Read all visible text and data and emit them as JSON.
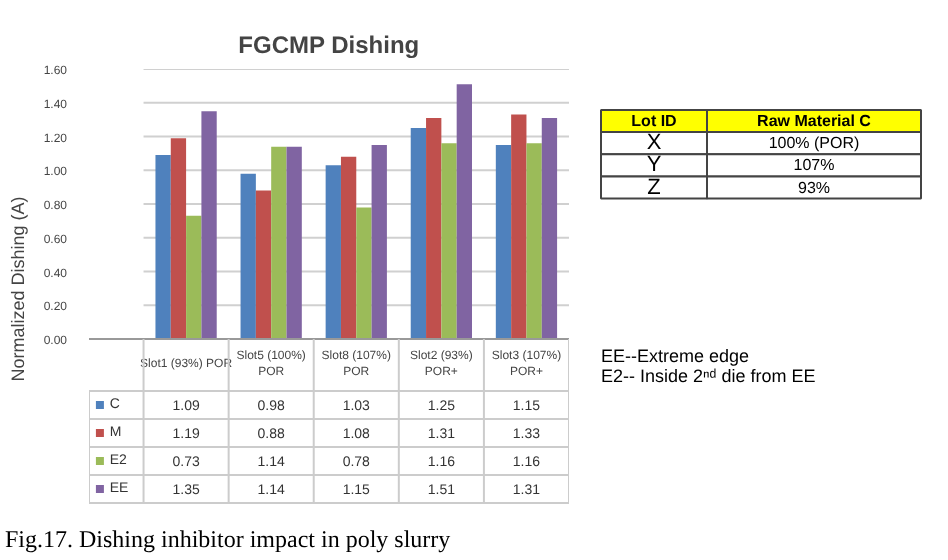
{
  "chart_data": {
    "type": "bar",
    "title": "FGCMP Dishing",
    "ylabel": "Normalized Dishing (A)",
    "categories": [
      "Slot1 (93%) POR",
      "Slot5 (100%)\nPOR",
      "Slot8 (107%)\nPOR",
      "Slot2 (93%)\nPOR+",
      "Slot3 (107%)\nPOR+"
    ],
    "series": [
      {
        "name": "C",
        "color": "#4f81bd",
        "values": [
          1.09,
          0.98,
          1.03,
          1.25,
          1.15
        ]
      },
      {
        "name": "M",
        "color": "#c0504d",
        "values": [
          1.19,
          0.88,
          1.08,
          1.31,
          1.33
        ]
      },
      {
        "name": "E2",
        "color": "#9bbb59",
        "values": [
          0.73,
          1.14,
          0.78,
          1.16,
          1.16
        ]
      },
      {
        "name": "EE",
        "color": "#8064a2",
        "values": [
          1.35,
          1.14,
          1.15,
          1.51,
          1.31
        ]
      }
    ],
    "ylim": [
      0,
      1.6
    ],
    "yticks": [
      {
        "value": 0,
        "label": "0.00"
      },
      {
        "value": 0.2,
        "label": "0.20"
      },
      {
        "value": 0.4,
        "label": "0.40"
      },
      {
        "value": 0.6,
        "label": "0.60"
      },
      {
        "value": 0.8,
        "label": "0.80"
      },
      {
        "value": 1.0,
        "label": "1.00"
      },
      {
        "value": 1.2,
        "label": "1.20"
      },
      {
        "value": 1.4,
        "label": "1.40"
      },
      {
        "value": 1.6,
        "label": "1.60"
      }
    ],
    "grid": "y",
    "data_labels": true,
    "legend": "bottom left",
    "annotations": [
      "Lot ID",
      "Raw Material C",
      "X",
      "100% (POR)",
      "Y",
      "107%",
      "Z",
      "93%",
      "EE--Extreme edge",
      "E2-- Inside 2ⁿᵈ die from EE",
      "Fig.17. Dishing inhibitor impact in poly slurry"
    ]
  }
}
